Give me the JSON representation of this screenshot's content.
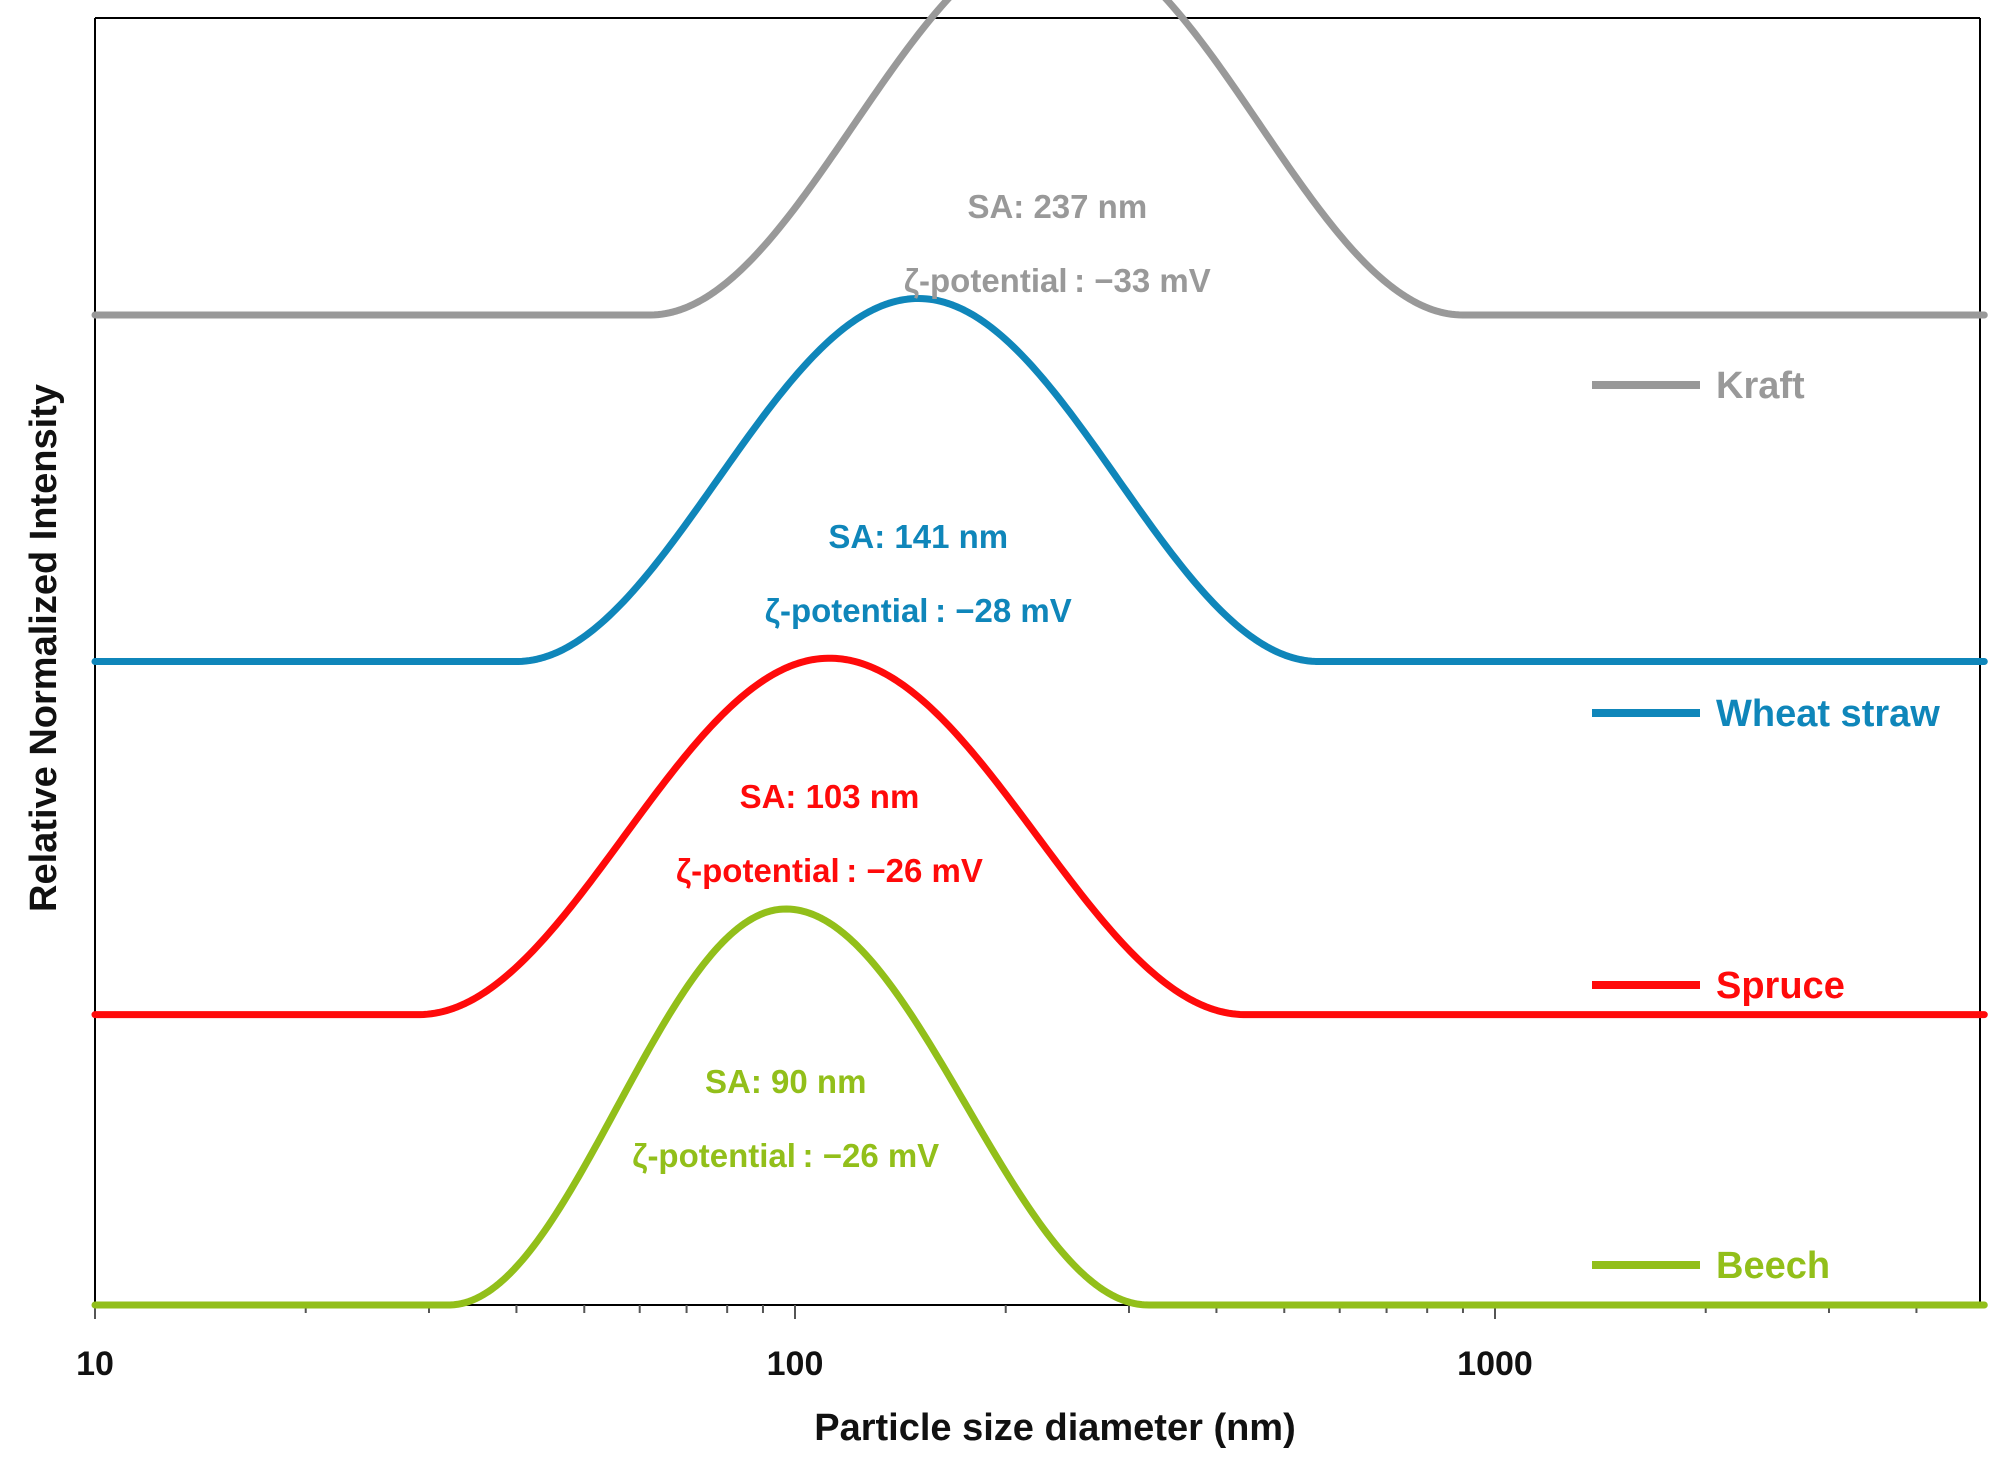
{
  "chart_data": {
    "type": "line",
    "xscale": "log",
    "xlim": [
      10,
      5000
    ],
    "xticks_major": [
      10,
      100,
      1000
    ],
    "xtick_labels": [
      "10",
      "100",
      "1000"
    ],
    "xlabel": "Particle size diameter (nm)",
    "ylabel": "Relative Normalized Intensity",
    "legend_position": "right",
    "series": [
      {
        "name": "Kraft",
        "color": "#999999",
        "offset": 3,
        "peak_x": 237,
        "height": 1.15,
        "range": [
          62,
          900
        ],
        "annotation": [
          "SA: 237 nm",
          "ζ-potential : −33 mV"
        ]
      },
      {
        "name": "Wheat straw",
        "color": "#0F86BA",
        "offset": 1.95,
        "peak_x": 150,
        "height": 1.1,
        "range": [
          40,
          560
        ],
        "annotation": [
          "SA: 141 nm",
          "ζ-potential : −28 mV"
        ]
      },
      {
        "name": "Spruce",
        "color": "#FF0A0A",
        "offset": 0.88,
        "peak_x": 112,
        "height": 1.08,
        "range": [
          29,
          440
        ],
        "annotation": [
          "SA: 103 nm",
          "ζ-potential : −26 mV"
        ]
      },
      {
        "name": "Beech",
        "color": "#92BF1A",
        "offset": 0,
        "peak_x": 97,
        "height": 1.2,
        "range": [
          32,
          320
        ],
        "annotation": [
          "SA: 90 nm",
          "ζ-potential : −26 mV"
        ]
      }
    ]
  }
}
